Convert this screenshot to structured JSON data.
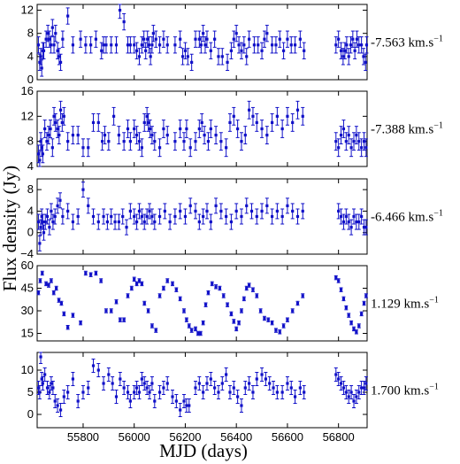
{
  "chart_data": {
    "type": "scatter",
    "xlabel": "MJD (days)",
    "ylabel": "Flux density (Jy)",
    "xlim": [
      55620,
      56912
    ],
    "xticks": [
      55800,
      56000,
      56200,
      56400,
      56600,
      56800
    ],
    "series_color": "#1010c8",
    "panels": [
      {
        "label": "-7.563 km.s",
        "label_sup": "−1",
        "ylim": [
          0,
          13
        ],
        "yticks": [
          0,
          4,
          8,
          12
        ],
        "yerr": 1.4,
        "x": [
          55625,
          55630,
          55634,
          55638,
          55642,
          55646,
          55655,
          55662,
          55668,
          55674,
          55680,
          55686,
          55692,
          55700,
          55706,
          55712,
          55720,
          55740,
          55760,
          55790,
          55810,
          55830,
          55850,
          55872,
          55880,
          55890,
          55910,
          55930,
          55944,
          55960,
          55975,
          55985,
          56000,
          56010,
          56020,
          56030,
          56038,
          56045,
          56052,
          56058,
          56064,
          56070,
          56075,
          56085,
          56100,
          56115,
          56130,
          56160,
          56180,
          56190,
          56200,
          56210,
          56225,
          56240,
          56255,
          56262,
          56270,
          56278,
          56285,
          56300,
          56315,
          56330,
          56345,
          56365,
          56380,
          56390,
          56400,
          56410,
          56420,
          56430,
          56440,
          56450,
          56470,
          56485,
          56500,
          56510,
          56520,
          56540,
          56555,
          56570,
          56585,
          56600,
          56615,
          56630,
          56650,
          56665,
          56790,
          56800,
          56810,
          56818,
          56825,
          56832,
          56840,
          56848,
          56856,
          56864,
          56872,
          56880,
          56890,
          56898,
          56906,
          56910
        ],
        "y": [
          6,
          3,
          4,
          2,
          5,
          5,
          7,
          8,
          7,
          6,
          9,
          6,
          8,
          5,
          4,
          3,
          7,
          11,
          6,
          7,
          6,
          6,
          7,
          5,
          6,
          6,
          6,
          6,
          12,
          10,
          6,
          6,
          6,
          5,
          4,
          6,
          7,
          5,
          7,
          6,
          4,
          6,
          8,
          7,
          6,
          7,
          6,
          6,
          7,
          4,
          5,
          4,
          3,
          7,
          7,
          6,
          8,
          6,
          7,
          5,
          7,
          4,
          4,
          3,
          5,
          7,
          8,
          6,
          5,
          6,
          4,
          7,
          6,
          6,
          5,
          7,
          8,
          6,
          6,
          7,
          5,
          7,
          6,
          6,
          7,
          5,
          6,
          7,
          5,
          4,
          5,
          6,
          4,
          6,
          7,
          5,
          7,
          6,
          6,
          4,
          3,
          6
        ]
      },
      {
        "label": "-7.388 km.s",
        "label_sup": "−1",
        "ylim": [
          4,
          16
        ],
        "yticks": [
          4,
          8,
          12,
          16
        ],
        "yerr": 1.4,
        "x": [
          55625,
          55630,
          55634,
          55638,
          55642,
          55650,
          55658,
          55665,
          55672,
          55680,
          55686,
          55692,
          55700,
          55706,
          55712,
          55718,
          55725,
          55740,
          55760,
          55780,
          55800,
          55820,
          55840,
          55860,
          55875,
          55885,
          55900,
          55920,
          55940,
          55960,
          55975,
          55985,
          56000,
          56010,
          56020,
          56030,
          56040,
          56050,
          56055,
          56062,
          56070,
          56080,
          56100,
          56115,
          56130,
          56160,
          56180,
          56195,
          56205,
          56220,
          56240,
          56255,
          56265,
          56275,
          56290,
          56300,
          56320,
          56340,
          56360,
          56375,
          56390,
          56405,
          56420,
          56435,
          56450,
          56465,
          56480,
          56500,
          56520,
          56540,
          56560,
          56580,
          56600,
          56620,
          56640,
          56660,
          56790,
          56800,
          56810,
          56820,
          56830,
          56840,
          56850,
          56860,
          56870,
          56880,
          56890,
          56900,
          56908
        ],
        "y": [
          6,
          5,
          8,
          7,
          6,
          10,
          8,
          9,
          10,
          7,
          12,
          11,
          10,
          9,
          13,
          11,
          12,
          8,
          9,
          9,
          7,
          7,
          11,
          11,
          8,
          9,
          8,
          12,
          9,
          8,
          10,
          8,
          10,
          9,
          8,
          7,
          11,
          12,
          11,
          10,
          9,
          8,
          7,
          10,
          9,
          8,
          10,
          8,
          10,
          7,
          8,
          10,
          11,
          9,
          8,
          10,
          9,
          8,
          7,
          11,
          12,
          10,
          8,
          9,
          13,
          12,
          11,
          10,
          9,
          11,
          12,
          10,
          12,
          11,
          13,
          12,
          8,
          7,
          9,
          10,
          8,
          9,
          7,
          8,
          9,
          8,
          7,
          8,
          7
        ]
      },
      {
        "label": "-6.466 km.s",
        "label_sup": "−1",
        "ylim": [
          -4,
          10
        ],
        "yticks": [
          -4,
          0,
          4,
          8
        ],
        "yerr": 1.4,
        "x": [
          55625,
          55630,
          55634,
          55638,
          55642,
          55646,
          55652,
          55660,
          55668,
          55675,
          55682,
          55690,
          55700,
          55710,
          55720,
          55740,
          55760,
          55780,
          55800,
          55820,
          55840,
          55860,
          55880,
          55895,
          55910,
          55925,
          55940,
          55955,
          55970,
          55985,
          56000,
          56010,
          56020,
          56030,
          56040,
          56050,
          56060,
          56070,
          56080,
          56100,
          56120,
          56140,
          56160,
          56180,
          56200,
          56220,
          56240,
          56255,
          56270,
          56285,
          56300,
          56320,
          56340,
          56360,
          56380,
          56400,
          56420,
          56440,
          56460,
          56480,
          56500,
          56520,
          56540,
          56560,
          56580,
          56600,
          56620,
          56640,
          56660,
          56800,
          56810,
          56820,
          56830,
          56840,
          56850,
          56860,
          56870,
          56880,
          56890,
          56900,
          56908
        ],
        "y": [
          2,
          -2,
          1,
          3,
          2,
          0,
          2,
          3,
          1,
          4,
          2,
          3,
          5,
          6,
          3,
          4,
          2,
          3,
          8,
          5,
          3,
          2,
          3,
          2,
          3,
          2,
          2,
          3,
          1,
          4,
          3,
          2,
          4,
          3,
          2,
          3,
          4,
          3,
          2,
          3,
          4,
          2,
          3,
          4,
          3,
          5,
          4,
          2,
          3,
          4,
          2,
          5,
          4,
          3,
          2,
          4,
          3,
          5,
          4,
          3,
          4,
          5,
          3,
          4,
          3,
          5,
          4,
          3,
          4,
          4,
          3,
          2,
          3,
          2,
          1,
          3,
          2,
          2,
          3,
          1,
          1
        ]
      },
      {
        "label": "1.129 km.s",
        "label_sup": "−1",
        "ylim": [
          10,
          60
        ],
        "yticks": [
          15,
          30,
          45,
          60
        ],
        "yerr": 1.3,
        "x": [
          55625,
          55632,
          55640,
          55655,
          55665,
          55675,
          55685,
          55695,
          55705,
          55715,
          55725,
          55740,
          55760,
          55790,
          55810,
          55830,
          55850,
          55870,
          55890,
          55910,
          55930,
          55945,
          55960,
          55975,
          55990,
          56000,
          56010,
          56020,
          56030,
          56040,
          56055,
          56070,
          56085,
          56100,
          56115,
          56130,
          56150,
          56165,
          56180,
          56195,
          56205,
          56215,
          56225,
          56240,
          56250,
          56260,
          56270,
          56280,
          56290,
          56305,
          56320,
          56335,
          56350,
          56365,
          56380,
          56390,
          56400,
          56410,
          56420,
          56430,
          56440,
          56450,
          56465,
          56480,
          56495,
          56510,
          56525,
          56540,
          56555,
          56570,
          56585,
          56600,
          56620,
          56640,
          56660,
          56790,
          56800,
          56810,
          56820,
          56830,
          56840,
          56850,
          56860,
          56870,
          56880,
          56890,
          56900,
          56908
        ],
        "y": [
          42,
          50,
          55,
          48,
          47,
          50,
          42,
          45,
          37,
          35,
          28,
          19,
          27,
          22,
          55,
          54,
          55,
          50,
          30,
          30,
          36,
          24,
          24,
          40,
          45,
          51,
          48,
          50,
          48,
          35,
          30,
          20,
          17,
          40,
          45,
          50,
          48,
          44,
          38,
          30,
          24,
          20,
          17,
          18,
          15,
          15,
          22,
          34,
          42,
          48,
          46,
          45,
          40,
          34,
          28,
          23,
          18,
          22,
          30,
          38,
          45,
          47,
          44,
          40,
          30,
          25,
          24,
          22,
          17,
          16,
          20,
          24,
          30,
          35,
          40,
          52,
          50,
          44,
          38,
          32,
          27,
          22,
          18,
          16,
          20,
          28,
          35,
          40
        ]
      },
      {
        "label": "1.700 km.s",
        "label_sup": "−1",
        "ylim": [
          -3,
          14
        ],
        "yticks": [
          0,
          5,
          10
        ],
        "yerr": 1.5,
        "x": [
          55625,
          55630,
          55634,
          55638,
          55642,
          55650,
          55660,
          55668,
          55675,
          55682,
          55690,
          55700,
          55712,
          55725,
          55740,
          55760,
          55780,
          55800,
          55820,
          55840,
          55860,
          55880,
          55900,
          55915,
          55930,
          55945,
          55960,
          55975,
          55985,
          56000,
          56010,
          56020,
          56030,
          56040,
          56050,
          56060,
          56070,
          56080,
          56100,
          56115,
          56130,
          56150,
          56165,
          56180,
          56195,
          56205,
          56215,
          56240,
          56255,
          56270,
          56285,
          56300,
          56315,
          56330,
          56345,
          56360,
          56375,
          56390,
          56405,
          56420,
          56435,
          56450,
          56465,
          56480,
          56500,
          56515,
          56530,
          56545,
          56560,
          56580,
          56600,
          56615,
          56630,
          56650,
          56665,
          56790,
          56800,
          56810,
          56820,
          56830,
          56840,
          56850,
          56860,
          56870,
          56880,
          56890,
          56900,
          56908
        ],
        "y": [
          6,
          5,
          13,
          8,
          7,
          9,
          6,
          5,
          7,
          6,
          3,
          2,
          1,
          4,
          5,
          8,
          3,
          5,
          6,
          11,
          10,
          7,
          9,
          7,
          4,
          8,
          6,
          5,
          3,
          5,
          6,
          5,
          8,
          7,
          6,
          5,
          7,
          3,
          5,
          6,
          7,
          4,
          3,
          1,
          3,
          2,
          2,
          6,
          7,
          5,
          7,
          8,
          6,
          5,
          7,
          9,
          5,
          6,
          4,
          2,
          6,
          7,
          5,
          8,
          9,
          8,
          7,
          6,
          5,
          5,
          7,
          6,
          4,
          6,
          5,
          9,
          8,
          7,
          6,
          5,
          4,
          5,
          3,
          4,
          5,
          6,
          6,
          7
        ]
      }
    ]
  }
}
